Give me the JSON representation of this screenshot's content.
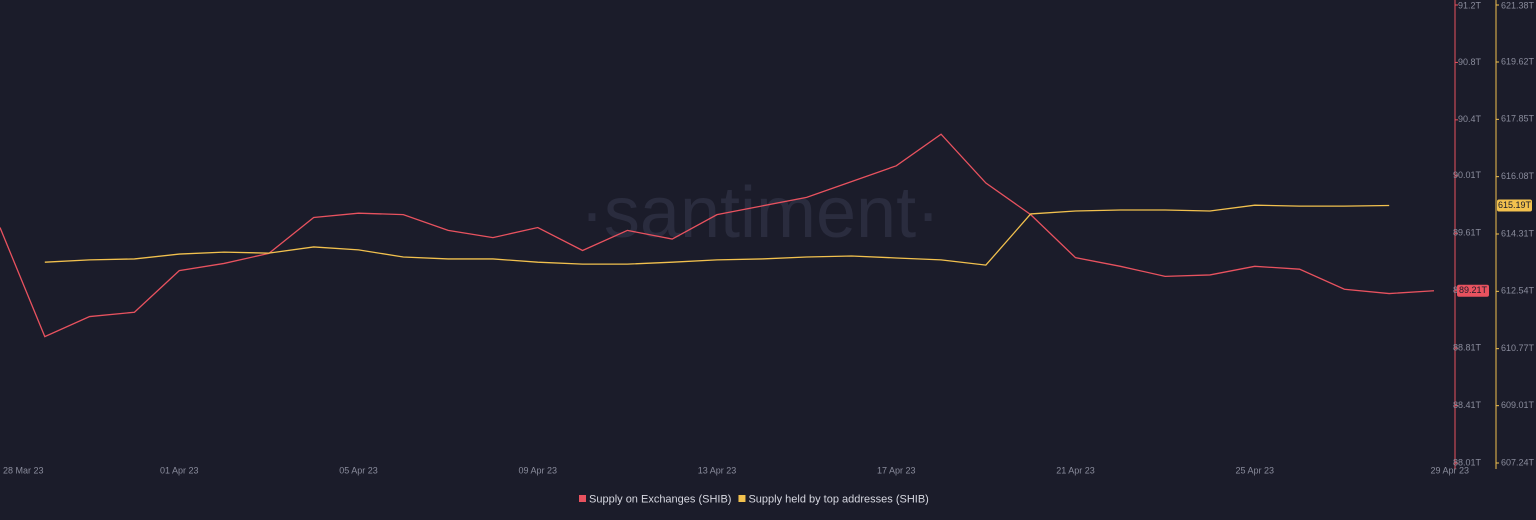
{
  "chart_data": {
    "type": "line",
    "watermark": "·santiment·",
    "categories": [
      "28 Mar 23",
      null,
      null,
      null,
      "01 Apr 23",
      null,
      null,
      null,
      "05 Apr 23",
      null,
      null,
      null,
      "09 Apr 23",
      null,
      null,
      null,
      "13 Apr 23",
      null,
      null,
      null,
      "17 Apr 23",
      null,
      null,
      null,
      "21 Apr 23",
      null,
      null,
      null,
      "25 Apr 23",
      null,
      null,
      null,
      "29 Apr 23"
    ],
    "series": [
      {
        "name": "Supply on Exchanges (SHIB)",
        "color": "#e8525f",
        "axis": "y",
        "values": [
          89.65,
          88.89,
          89.03,
          89.06,
          89.35,
          89.4,
          89.47,
          89.72,
          89.75,
          89.74,
          89.63,
          89.58,
          89.65,
          89.49,
          89.63,
          89.57,
          89.74,
          89.8,
          89.86,
          89.97,
          90.08,
          90.3,
          89.96,
          89.74,
          89.44,
          89.38,
          89.31,
          89.32,
          89.38,
          89.36,
          89.22,
          89.19,
          89.21
        ],
        "value_labels": [
          null,
          null,
          null,
          null,
          null,
          null,
          null,
          null,
          null,
          null,
          null,
          null,
          null,
          null,
          null,
          null,
          null,
          null,
          null,
          null,
          null,
          null,
          null,
          null,
          null,
          null,
          null,
          null,
          null,
          null,
          null,
          null,
          "89.21T"
        ]
      },
      {
        "name": "Supply held by top addresses (SHIB)",
        "color": "#f2c14e",
        "axis": "y2",
        "values": [
          null,
          613.44,
          613.51,
          613.54,
          613.69,
          613.75,
          613.72,
          613.91,
          613.82,
          613.6,
          613.54,
          613.54,
          613.44,
          613.38,
          613.38,
          613.44,
          613.51,
          613.54,
          613.6,
          613.63,
          613.57,
          613.51,
          613.35,
          614.93,
          615.02,
          615.05,
          615.05,
          615.02,
          615.2,
          615.17,
          615.17,
          615.19,
          null
        ],
        "value_labels": [
          null,
          null,
          null,
          null,
          null,
          null,
          null,
          null,
          null,
          null,
          null,
          null,
          null,
          null,
          null,
          null,
          null,
          null,
          null,
          null,
          null,
          null,
          null,
          null,
          null,
          null,
          null,
          null,
          null,
          null,
          null,
          "615.19T",
          null
        ]
      }
    ],
    "ylim": [
      88.01,
      91.2
    ],
    "yticks": [
      {
        "value": 88.01,
        "label": "88.01T"
      },
      {
        "value": 88.41,
        "label": "88.41T"
      },
      {
        "value": 88.81,
        "label": "88.81T"
      },
      {
        "value": 89.21,
        "label": "89.21T"
      },
      {
        "value": 89.61,
        "label": "89.61T"
      },
      {
        "value": 90.01,
        "label": "90.01T"
      },
      {
        "value": 90.4,
        "label": "90.4T"
      },
      {
        "value": 90.8,
        "label": "90.8T"
      },
      {
        "value": 91.2,
        "label": "91.2T"
      }
    ],
    "y2lim": [
      607.24,
      621.38
    ],
    "y2ticks": [
      {
        "value": 607.24,
        "label": "607.24T"
      },
      {
        "value": 609.01,
        "label": "609.01T"
      },
      {
        "value": 610.77,
        "label": "610.77T"
      },
      {
        "value": 612.54,
        "label": "612.54T"
      },
      {
        "value": 614.31,
        "label": "614.31T"
      },
      {
        "value": 616.08,
        "label": "616.08T"
      },
      {
        "value": 617.85,
        "label": "617.85T"
      },
      {
        "value": 619.62,
        "label": "619.62T"
      },
      {
        "value": 621.38,
        "label": "621.38T"
      }
    ],
    "grid": false
  }
}
